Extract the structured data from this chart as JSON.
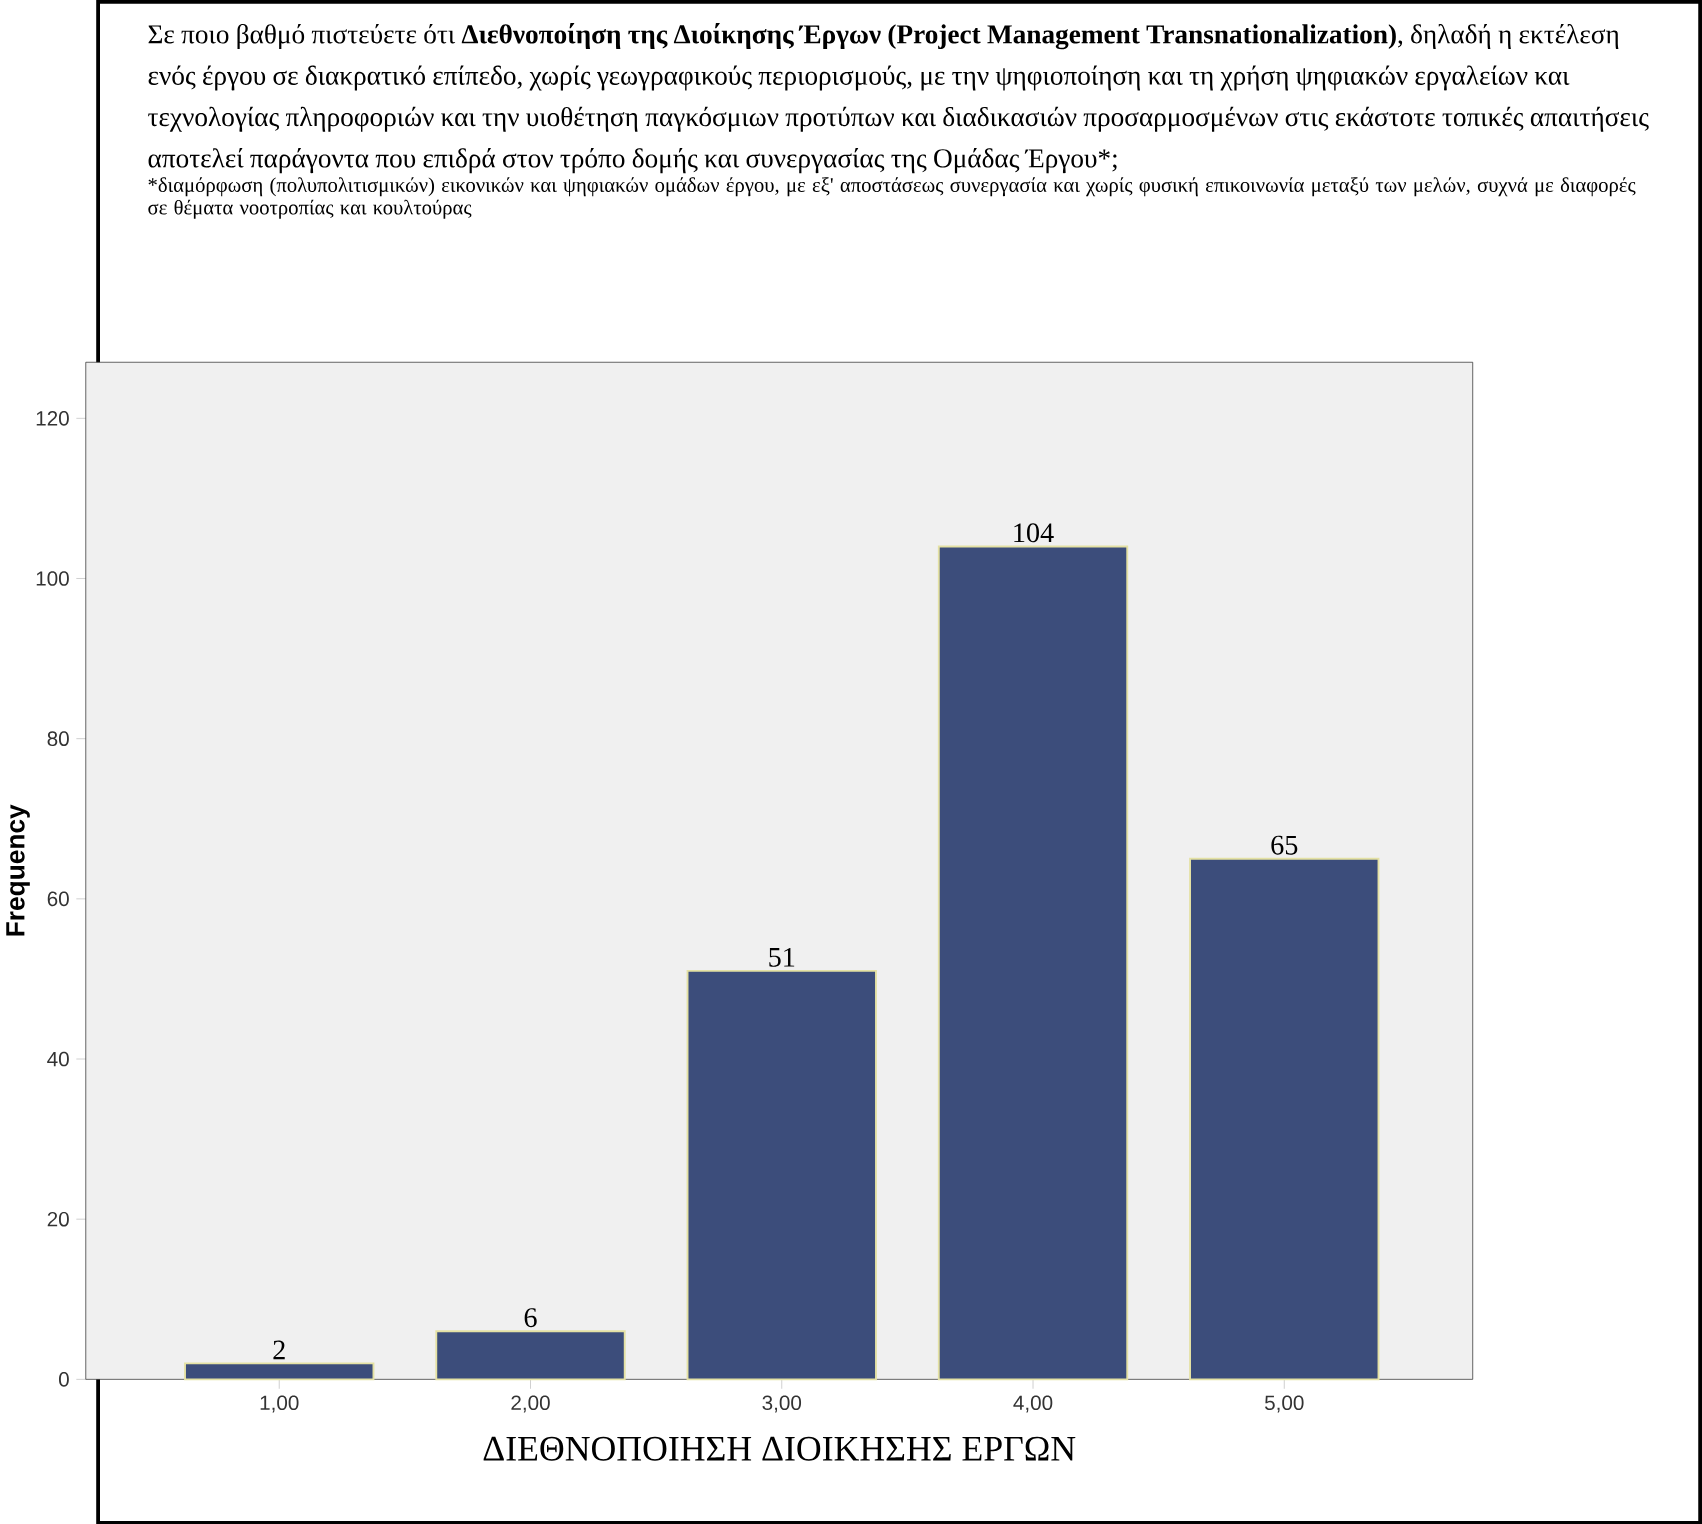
{
  "chart_data": {
    "type": "bar",
    "title": "Σε ποιο βαθμό πιστεύετε ότι **Διεθνοποίηση της Διοίκησης Έργων (Project Management Transnationalization)**, δηλαδή η εκτέλεση ενός έργου σε διακρατικό επίπεδο, χωρίς γεωγραφικούς περιορισμούς, με την ψηφιοποίηση και τη χρήση ψηφιακών εργαλείων και τεχνολογίας πληροφοριών και την υιοθέτηση παγκόσμιων προτύπων και διαδικασιών προσαρμοσμένων στις εκάστοτε τοπικές απαιτήσεις αποτελεί παράγοντα που επιδρά στον τρόπο δομής και συνεργασίας της Ομάδας Έργου*;",
    "subtitle": "*διαμόρφωση (πολυπολιτισμικών) εικονικών και ψηφιακών ομάδων έργου, με εξ' αποστάσεως συνεργασία και χωρίς φυσική επικοινωνία μεταξύ των μελών, συχνά με διαφορές σε θέματα νοοτροπίας και κουλτούρας",
    "xlabel": "ΔΙΕΘΝΟΠΟΙΗΣΗ ΔΙΟΙΚΗΣΗΣ ΕΡΓΩΝ",
    "ylabel": "Frequency",
    "categories": [
      "1,00",
      "2,00",
      "3,00",
      "4,00",
      "5,00"
    ],
    "values": [
      2,
      6,
      51,
      104,
      65
    ],
    "color": "#3c4d7b",
    "ylim": [
      0,
      127
    ],
    "yticks": [
      0,
      20,
      40,
      60,
      80,
      100,
      120
    ],
    "data_labels": true
  }
}
